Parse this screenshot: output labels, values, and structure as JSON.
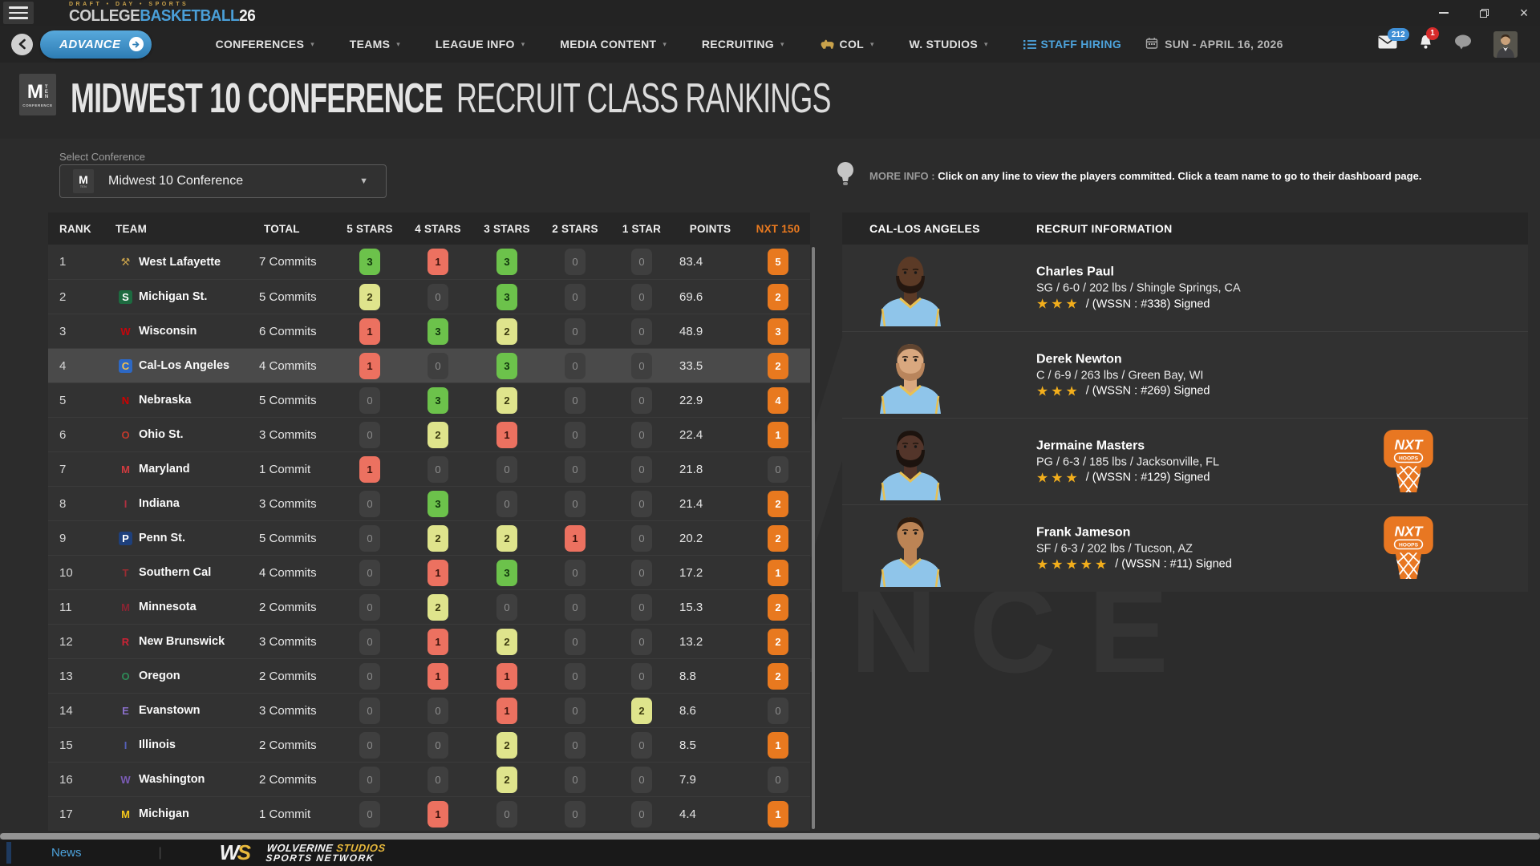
{
  "titlebar": {
    "tagline": "DRAFT • DAY • SPORTS",
    "brand": {
      "college": "COLLEGE",
      "basketball": "BASKETBALL",
      "year": "26"
    },
    "window": {
      "close": "×"
    }
  },
  "nav": {
    "advance_label": "ADVANCE",
    "items": [
      {
        "label": "CONFERENCES",
        "caret": true
      },
      {
        "label": "TEAMS",
        "caret": true
      },
      {
        "label": "LEAGUE INFO",
        "caret": true
      },
      {
        "label": "MEDIA CONTENT",
        "caret": true
      },
      {
        "label": "RECRUITING",
        "caret": true
      },
      {
        "label": "COL",
        "caret": true,
        "icon": "bison"
      },
      {
        "label": "W. STUDIOS",
        "caret": true
      },
      {
        "label": "STAFF HIRING",
        "icon": "list",
        "accent": true
      }
    ],
    "date": "SUN - APRIL 16, 2026",
    "badges": {
      "mail": "212",
      "alerts": "1"
    }
  },
  "page": {
    "title_bold": "MIDWEST 10 CONFERENCE",
    "title_light": "RECRUIT CLASS RANKINGS",
    "conf_logo": {
      "m": "M",
      "ten": "TEN",
      "sub": "CONFERENCE"
    }
  },
  "filter": {
    "label": "Select Conference",
    "value": "Midwest 10 Conference"
  },
  "info_tip": {
    "prefix": "MORE INFO :",
    "text": "Click on any line to view the players committed. Click a team name to go to their dashboard page."
  },
  "table": {
    "headers": [
      "RANK",
      "TEAM",
      "TOTAL",
      "5 STARS",
      "4 STARS",
      "3 STARS",
      "2 STARS",
      "1 STAR",
      "POINTS",
      "NXT 150"
    ],
    "rows": [
      {
        "rank": 1,
        "team": "West Lafayette",
        "logo": {
          "glyph": "⚒",
          "color": "#c9a24b",
          "bg": ""
        },
        "total": "7 Commits",
        "stars": [
          3,
          1,
          3,
          0,
          0
        ],
        "points": "83.4",
        "nxt": 5
      },
      {
        "rank": 2,
        "team": "Michigan St.",
        "logo": {
          "glyph": "S",
          "color": "#ffffff",
          "bg": "#1d6b40"
        },
        "total": "5 Commits",
        "stars": [
          2,
          0,
          3,
          0,
          0
        ],
        "points": "69.6",
        "nxt": 2
      },
      {
        "rank": 3,
        "team": "Wisconsin",
        "logo": {
          "glyph": "W",
          "color": "#c5050c",
          "bg": ""
        },
        "total": "6 Commits",
        "stars": [
          1,
          3,
          2,
          0,
          0
        ],
        "points": "48.9",
        "nxt": 3
      },
      {
        "rank": 4,
        "team": "Cal-Los Angeles",
        "logo": {
          "glyph": "C",
          "color": "#f2c14e",
          "bg": "#2d68c4"
        },
        "total": "4 Commits",
        "stars": [
          1,
          0,
          3,
          0,
          0
        ],
        "points": "33.5",
        "nxt": 2,
        "selected": true
      },
      {
        "rank": 5,
        "team": "Nebraska",
        "logo": {
          "glyph": "N",
          "color": "#d00000",
          "bg": ""
        },
        "total": "5 Commits",
        "stars": [
          0,
          3,
          2,
          0,
          0
        ],
        "points": "22.9",
        "nxt": 4
      },
      {
        "rank": 6,
        "team": "Ohio St.",
        "logo": {
          "glyph": "O",
          "color": "#c0392b",
          "bg": ""
        },
        "total": "3 Commits",
        "stars": [
          0,
          2,
          1,
          0,
          0
        ],
        "points": "22.4",
        "nxt": 1
      },
      {
        "rank": 7,
        "team": "Maryland",
        "logo": {
          "glyph": "M",
          "color": "#d23b3f",
          "bg": ""
        },
        "total": "1 Commit",
        "stars": [
          1,
          0,
          0,
          0,
          0
        ],
        "points": "21.8",
        "nxt": 0
      },
      {
        "rank": 8,
        "team": "Indiana",
        "logo": {
          "glyph": "I",
          "color": "#b03040",
          "bg": ""
        },
        "total": "3 Commits",
        "stars": [
          0,
          3,
          0,
          0,
          0
        ],
        "points": "21.4",
        "nxt": 2
      },
      {
        "rank": 9,
        "team": "Penn St.",
        "logo": {
          "glyph": "P",
          "color": "#ffffff",
          "bg": "#1e407c"
        },
        "total": "5 Commits",
        "stars": [
          0,
          2,
          2,
          1,
          0
        ],
        "points": "20.2",
        "nxt": 2
      },
      {
        "rank": 10,
        "team": "Southern Cal",
        "logo": {
          "glyph": "T",
          "color": "#9a2c32",
          "bg": ""
        },
        "total": "4 Commits",
        "stars": [
          0,
          1,
          3,
          0,
          0
        ],
        "points": "17.2",
        "nxt": 1
      },
      {
        "rank": 11,
        "team": "Minnesota",
        "logo": {
          "glyph": "M",
          "color": "#8a2432",
          "bg": ""
        },
        "total": "2 Commits",
        "stars": [
          0,
          2,
          0,
          0,
          0
        ],
        "points": "15.3",
        "nxt": 2
      },
      {
        "rank": 12,
        "team": "New Brunswick",
        "logo": {
          "glyph": "R",
          "color": "#cc2235",
          "bg": ""
        },
        "total": "3 Commits",
        "stars": [
          0,
          1,
          2,
          0,
          0
        ],
        "points": "13.2",
        "nxt": 2
      },
      {
        "rank": 13,
        "team": "Oregon",
        "logo": {
          "glyph": "O",
          "color": "#2e8a57",
          "bg": ""
        },
        "total": "2 Commits",
        "stars": [
          0,
          1,
          1,
          0,
          0
        ],
        "points": "8.8",
        "nxt": 2
      },
      {
        "rank": 14,
        "team": "Evanstown",
        "logo": {
          "glyph": "E",
          "color": "#8a6fc9",
          "bg": ""
        },
        "total": "3 Commits",
        "stars": [
          0,
          0,
          1,
          0,
          2
        ],
        "points": "8.6",
        "nxt": 0
      },
      {
        "rank": 15,
        "team": "Illinois",
        "logo": {
          "glyph": "I",
          "color": "#5560b8",
          "bg": ""
        },
        "total": "2 Commits",
        "stars": [
          0,
          0,
          2,
          0,
          0
        ],
        "points": "8.5",
        "nxt": 1
      },
      {
        "rank": 16,
        "team": "Washington",
        "logo": {
          "glyph": "W",
          "color": "#7a5bb5",
          "bg": ""
        },
        "total": "2 Commits",
        "stars": [
          0,
          0,
          2,
          0,
          0
        ],
        "points": "7.9",
        "nxt": 0
      },
      {
        "rank": 17,
        "team": "Michigan",
        "logo": {
          "glyph": "M",
          "color": "#f5c71a",
          "bg": ""
        },
        "total": "1 Commit",
        "stars": [
          0,
          1,
          0,
          0,
          0
        ],
        "points": "4.4",
        "nxt": 1
      }
    ]
  },
  "panel": {
    "team_header": "CAL-LOS ANGELES",
    "info_header": "RECRUIT INFORMATION",
    "nxt_badge": {
      "label": "NXT",
      "sub": "HOOPS"
    },
    "players": [
      {
        "name": "Charles Paul",
        "details": "SG / 6-0 / 202 lbs / Shingle Springs, CA",
        "stars": 3,
        "signed": "/ (WSSN : #338) Signed",
        "nxt": false,
        "skin": "#5b3a26",
        "hair": "",
        "beard": "#241710"
      },
      {
        "name": "Derek Newton",
        "details": "C / 6-9 / 263 lbs / Green Bay, WI",
        "stars": 3,
        "signed": "/ (WSSN : #269) Signed",
        "nxt": false,
        "skin": "#d9a87f",
        "hair": "#5f4430",
        "beard": "#b9855c"
      },
      {
        "name": "Jermaine Masters",
        "details": "PG / 6-3 / 185 lbs / Jacksonville, FL",
        "stars": 3,
        "signed": "/ (WSSN : #129) Signed",
        "nxt": true,
        "skin": "#53352a",
        "hair": "#1c130e",
        "beard": "#1c130e"
      },
      {
        "name": "Frank Jameson",
        "details": "SF / 6-3 / 202 lbs / Tucson, AZ",
        "stars": 5,
        "signed": "/ (WSSN : #11) Signed",
        "nxt": true,
        "skin": "#bc8455",
        "hair": "#2c1c10",
        "beard": ""
      }
    ]
  },
  "footer": {
    "news": "News",
    "brand": {
      "mono_w": "W",
      "mono_s": "S",
      "w1": "WOLVERINE",
      "w2": "STUDIOS",
      "line2": "SPORTS NETWORK"
    }
  },
  "watermark": {
    "letter": "M",
    "word": "ENCE"
  },
  "colors": {
    "accent_blue": "#4da3dc",
    "accent_orange": "#e8791f",
    "badge_green": "#6cc24b",
    "badge_yellow": "#dfe48c",
    "badge_red": "#ec7160",
    "badge_zero": "#3f3f3f",
    "gold": "#e8c052",
    "jersey_blue": "#8fc5ea"
  }
}
